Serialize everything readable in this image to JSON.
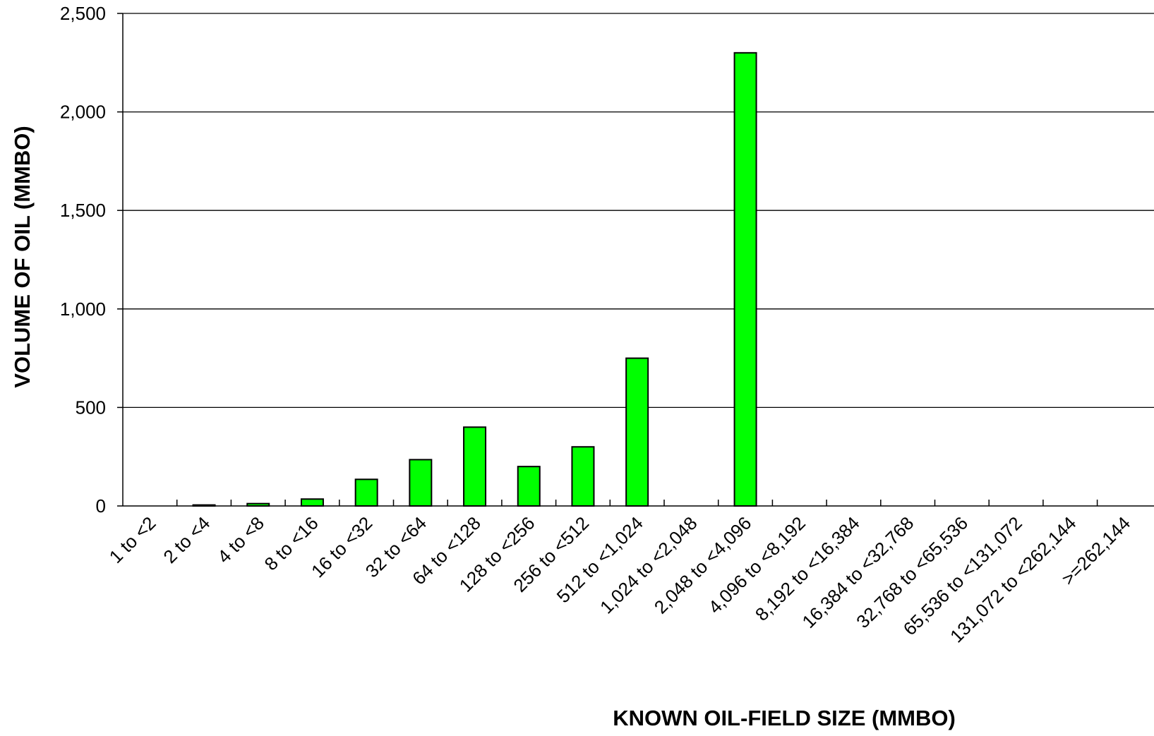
{
  "chart_data": {
    "type": "bar",
    "title": "",
    "xlabel": "KNOWN OIL-FIELD SIZE (MMBO)",
    "ylabel": "VOLUME OF OIL (MMBO)",
    "ylim": [
      0,
      2500
    ],
    "yticks": [
      0,
      500,
      1000,
      1500,
      2000,
      2500
    ],
    "ytick_labels": [
      "0",
      "500",
      "1,000",
      "1,500",
      "2,000",
      "2,500"
    ],
    "grid": "horizontal",
    "legend": "none",
    "bar_color": "#00ff00",
    "categories": [
      "1 to <2",
      "2 to <4",
      "4 to <8",
      "8 to <16",
      "16 to <32",
      "32 to <64",
      "64 to <128",
      "128 to <256",
      "256 to <512",
      "512 to <1,024",
      "1,024 to <2,048",
      "2,048 to <4,096",
      "4,096 to <8,192",
      "8,192 to <16,384",
      "16,384 to <32,768",
      "32,768 to <65,536",
      "65,536 to <131,072",
      "131,072 to <262,144",
      ">=262,144"
    ],
    "values": [
      0,
      5,
      12,
      35,
      135,
      235,
      400,
      200,
      300,
      750,
      0,
      2300,
      0,
      0,
      0,
      0,
      0,
      0,
      0
    ]
  }
}
